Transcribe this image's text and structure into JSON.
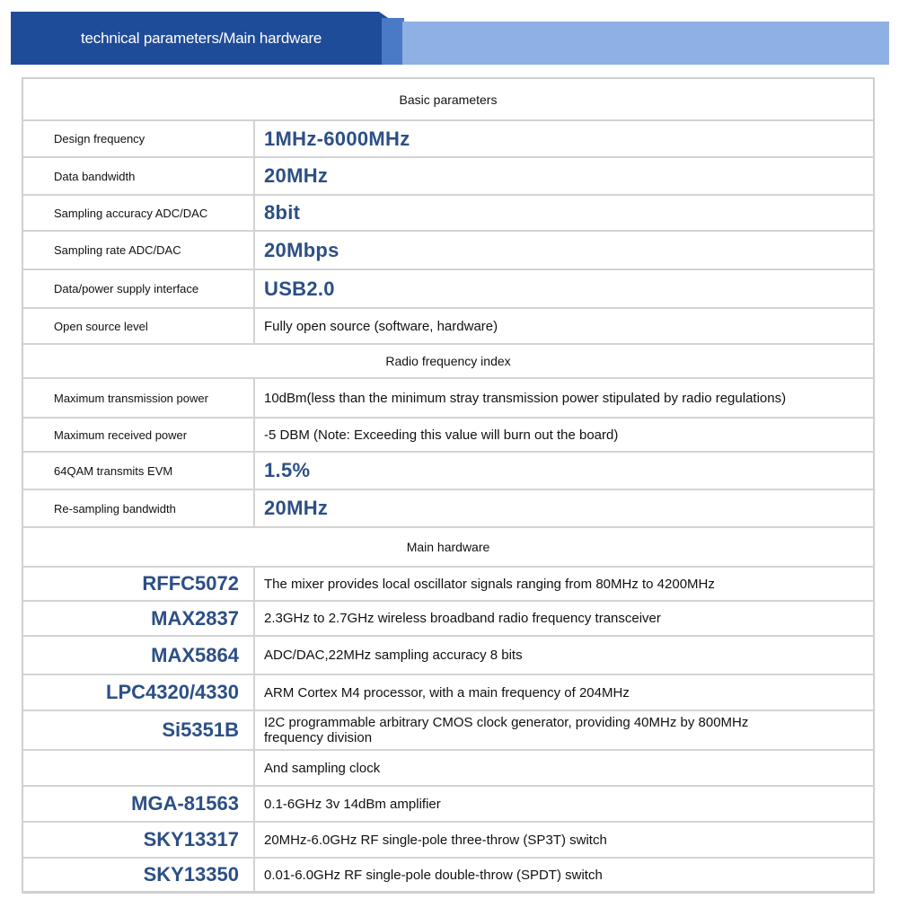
{
  "header": {
    "title": "technical parameters/Main hardware"
  },
  "rows": [
    {
      "type": "section",
      "text": "Basic parameters"
    },
    {
      "type": "param",
      "label": "Design frequency",
      "value": "1MHz-6000MHz",
      "emphasis": true
    },
    {
      "type": "param",
      "label": "Data bandwidth",
      "value": "20MHz",
      "emphasis": true
    },
    {
      "type": "param",
      "label": "Sampling accuracy ADC/DAC",
      "value": "8bit",
      "emphasis": true
    },
    {
      "type": "param",
      "label": "Sampling rate ADC/DAC",
      "value": "20Mbps",
      "emphasis": true
    },
    {
      "type": "param",
      "label": "Data/power supply interface",
      "value": "USB2.0",
      "emphasis": true
    },
    {
      "type": "param",
      "label": "Open source level",
      "value": "Fully open source (software, hardware)",
      "emphasis": false
    },
    {
      "type": "section",
      "text": "Radio frequency index"
    },
    {
      "type": "param",
      "label": "Maximum transmission power",
      "value": "10dBm(less than the minimum stray transmission power stipulated by radio regulations)",
      "emphasis": false
    },
    {
      "type": "param",
      "label": "Maximum received power",
      "value": "-5 DBM (Note: Exceeding this value will burn out the board)",
      "emphasis": false
    },
    {
      "type": "param",
      "label": "64QAM transmits EVM",
      "value": "1.5%",
      "emphasis": true
    },
    {
      "type": "param",
      "label": "Re-sampling bandwidth",
      "value": "20MHz",
      "emphasis": true
    },
    {
      "type": "section",
      "text": "Main hardware"
    },
    {
      "type": "hardware",
      "label": "RFFC5072",
      "value": "The mixer provides local oscillator signals ranging from 80MHz to 4200MHz"
    },
    {
      "type": "hardware",
      "label": "MAX2837",
      "value": "2.3GHz to 2.7GHz wireless broadband radio frequency transceiver"
    },
    {
      "type": "hardware",
      "label": "MAX5864",
      "value": "ADC/DAC,22MHz sampling accuracy 8 bits"
    },
    {
      "type": "hardware",
      "label": "LPC4320/4330",
      "value": "ARM Cortex M4 processor, with a main frequency of 204MHz"
    },
    {
      "type": "hardware",
      "label": "Si5351B",
      "value": "I2C programmable arbitrary CMOS clock generator, providing 40MHz by 800MHz frequency division"
    },
    {
      "type": "hardware",
      "label": "",
      "value": "And sampling clock"
    },
    {
      "type": "hardware",
      "label": "MGA-81563",
      "value": "0.1-6GHz 3v 14dBm amplifier"
    },
    {
      "type": "hardware",
      "label": "SKY13317",
      "value": "20MHz-6.0GHz RF single-pole three-throw (SP3T) switch"
    },
    {
      "type": "hardware",
      "label": "SKY13350",
      "value": "0.01-6.0GHz RF single-pole double-throw (SPDT) switch"
    }
  ],
  "colors": {
    "header_dark": "#1f4c98",
    "header_light": "#8fb0e4",
    "emphasis_text": "#2c4f86"
  }
}
